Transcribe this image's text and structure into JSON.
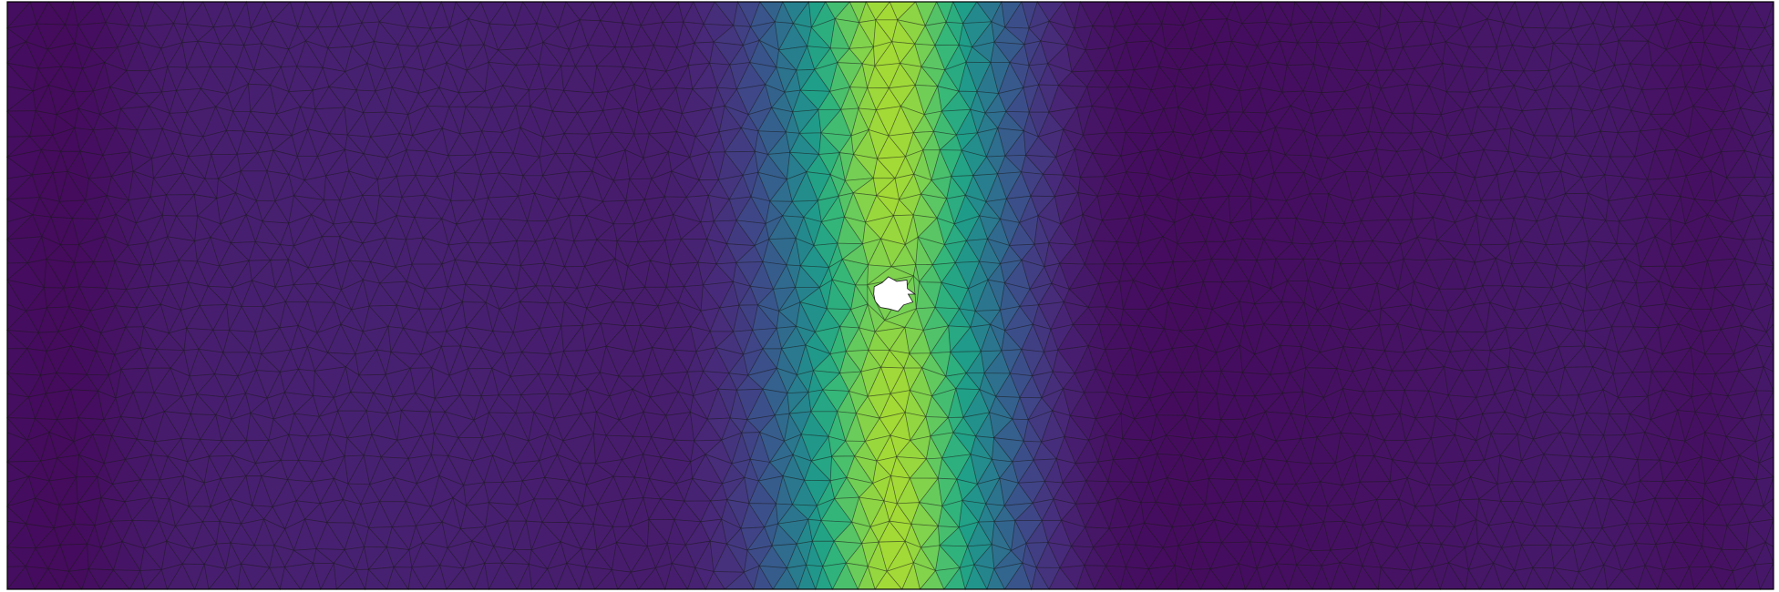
{
  "colormap": {
    "name": "viridis",
    "stops": [
      "#440154",
      "#482878",
      "#3e4989",
      "#31688e",
      "#26828e",
      "#1f9e89",
      "#35b779",
      "#6ece58",
      "#b5de2b",
      "#fde725"
    ]
  },
  "field": {
    "min_color": "#2d0a4a",
    "band_peak_color": "#c8b820",
    "mesh_line_color": "#1a1a1a",
    "hole_fill_color": "#ffffff",
    "border_color": "#000000"
  },
  "view": {
    "background_color": "#ffffff",
    "has_colorbar": false,
    "has_axes": false
  },
  "mesh": {
    "element_type": "triangle",
    "hole_shape": "irregular-circle"
  }
}
